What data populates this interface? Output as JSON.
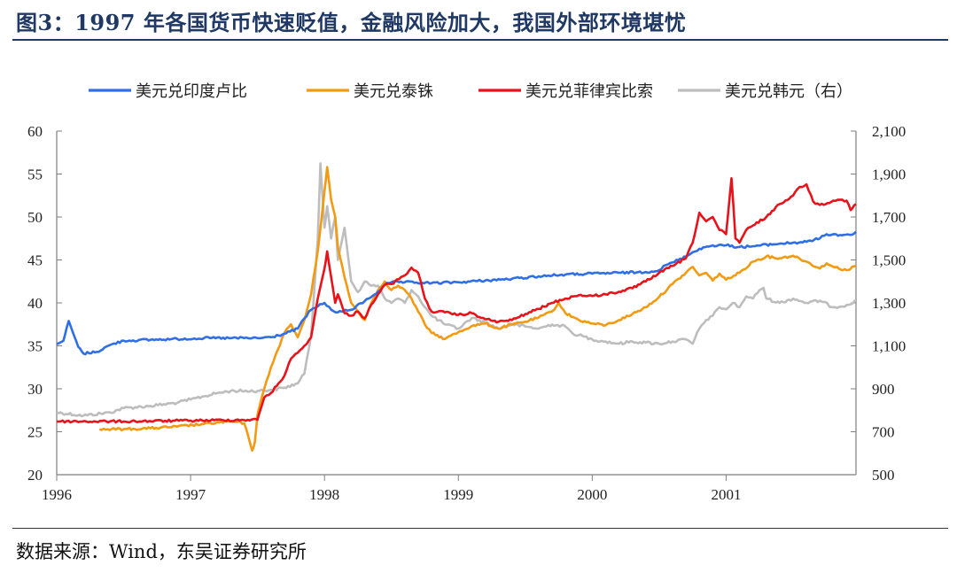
{
  "title": "图3：1997 年各国货币快速贬值，金融风险加大，我国外部环境堪忧",
  "source": "数据来源：Wind，东吴证券研究所",
  "chart_data": {
    "type": "line",
    "x_ticks": [
      "1996",
      "1997",
      "1998",
      "1999",
      "2000",
      "2001"
    ],
    "xlim": [
      1996.0,
      2001.97
    ],
    "y_left": {
      "ylim": [
        20,
        60
      ],
      "ticks": [
        "20",
        "25",
        "30",
        "35",
        "40",
        "45",
        "50",
        "55",
        "60"
      ]
    },
    "y_right": {
      "ylim": [
        500,
        2100
      ],
      "ticks": [
        "500",
        "700",
        "900",
        "1,100",
        "1,300",
        "1,500",
        "1,700",
        "1,900",
        "2,100"
      ]
    },
    "legend_position": "top",
    "grid": false,
    "series": [
      {
        "name": "美元兑印度卢比",
        "color": "#2f6fe6",
        "axis": "left",
        "points": [
          [
            1996.0,
            35.2
          ],
          [
            1996.05,
            35.6
          ],
          [
            1996.09,
            37.9
          ],
          [
            1996.12,
            36.6
          ],
          [
            1996.16,
            34.9
          ],
          [
            1996.2,
            34.1
          ],
          [
            1996.3,
            34.3
          ],
          [
            1996.4,
            35.1
          ],
          [
            1996.5,
            35.6
          ],
          [
            1996.7,
            35.7
          ],
          [
            1996.9,
            35.8
          ],
          [
            1997.1,
            35.9
          ],
          [
            1997.3,
            35.9
          ],
          [
            1997.5,
            35.9
          ],
          [
            1997.6,
            36.0
          ],
          [
            1997.7,
            36.4
          ],
          [
            1997.8,
            37.0
          ],
          [
            1997.85,
            38.2
          ],
          [
            1997.9,
            39.2
          ],
          [
            1997.95,
            39.6
          ],
          [
            1998.0,
            40.0
          ],
          [
            1998.05,
            39.2
          ],
          [
            1998.1,
            38.9
          ],
          [
            1998.2,
            39.2
          ],
          [
            1998.3,
            40.2
          ],
          [
            1998.4,
            41.3
          ],
          [
            1998.45,
            42.1
          ],
          [
            1998.5,
            42.4
          ],
          [
            1998.6,
            42.4
          ],
          [
            1998.8,
            42.3
          ],
          [
            1999.0,
            42.4
          ],
          [
            1999.2,
            42.6
          ],
          [
            1999.4,
            42.8
          ],
          [
            1999.6,
            43.1
          ],
          [
            1999.8,
            43.3
          ],
          [
            2000.0,
            43.4
          ],
          [
            2000.2,
            43.5
          ],
          [
            2000.4,
            43.6
          ],
          [
            2000.5,
            43.8
          ],
          [
            2000.55,
            44.4
          ],
          [
            2000.6,
            44.7
          ],
          [
            2000.7,
            45.4
          ],
          [
            2000.75,
            45.9
          ],
          [
            2000.8,
            46.3
          ],
          [
            2000.9,
            46.7
          ],
          [
            2001.0,
            46.7
          ],
          [
            2001.1,
            46.5
          ],
          [
            2001.2,
            46.6
          ],
          [
            2001.4,
            46.9
          ],
          [
            2001.6,
            47.1
          ],
          [
            2001.7,
            47.5
          ],
          [
            2001.75,
            48.0
          ],
          [
            2001.85,
            47.9
          ],
          [
            2001.95,
            48.0
          ],
          [
            2001.97,
            48.3
          ]
        ]
      },
      {
        "name": "美元兑泰铢",
        "color": "#f39a12",
        "axis": "left",
        "points": [
          [
            1996.32,
            25.3
          ],
          [
            1996.5,
            25.3
          ],
          [
            1996.7,
            25.4
          ],
          [
            1996.9,
            25.6
          ],
          [
            1997.1,
            25.9
          ],
          [
            1997.3,
            26.2
          ],
          [
            1997.4,
            26.0
          ],
          [
            1997.43,
            24.5
          ],
          [
            1997.46,
            22.8
          ],
          [
            1997.48,
            23.8
          ],
          [
            1997.5,
            27.0
          ],
          [
            1997.55,
            30.0
          ],
          [
            1997.6,
            32.5
          ],
          [
            1997.65,
            34.5
          ],
          [
            1997.7,
            36.5
          ],
          [
            1997.75,
            37.5
          ],
          [
            1997.8,
            36.0
          ],
          [
            1997.85,
            38.0
          ],
          [
            1997.9,
            41.0
          ],
          [
            1997.95,
            46.0
          ],
          [
            1998.0,
            53.0
          ],
          [
            1998.02,
            55.8
          ],
          [
            1998.05,
            52.0
          ],
          [
            1998.08,
            50.0
          ],
          [
            1998.1,
            46.5
          ],
          [
            1998.15,
            43.0
          ],
          [
            1998.2,
            40.0
          ],
          [
            1998.25,
            39.0
          ],
          [
            1998.3,
            38.0
          ],
          [
            1998.35,
            40.0
          ],
          [
            1998.4,
            41.5
          ],
          [
            1998.45,
            42.5
          ],
          [
            1998.5,
            41.5
          ],
          [
            1998.55,
            42.0
          ],
          [
            1998.6,
            41.5
          ],
          [
            1998.65,
            40.5
          ],
          [
            1998.7,
            39.0
          ],
          [
            1998.75,
            37.5
          ],
          [
            1998.8,
            36.5
          ],
          [
            1998.9,
            35.8
          ],
          [
            1999.0,
            36.6
          ],
          [
            1999.1,
            37.3
          ],
          [
            1999.2,
            37.6
          ],
          [
            1999.3,
            37.0
          ],
          [
            1999.4,
            37.5
          ],
          [
            1999.5,
            37.8
          ],
          [
            1999.6,
            38.3
          ],
          [
            1999.7,
            39.0
          ],
          [
            1999.75,
            40.0
          ],
          [
            1999.8,
            38.8
          ],
          [
            1999.9,
            38.0
          ],
          [
            2000.0,
            37.6
          ],
          [
            2000.1,
            37.4
          ],
          [
            2000.2,
            38.0
          ],
          [
            2000.3,
            38.7
          ],
          [
            2000.4,
            39.5
          ],
          [
            2000.5,
            40.7
          ],
          [
            2000.6,
            42.2
          ],
          [
            2000.7,
            43.5
          ],
          [
            2000.75,
            44.2
          ],
          [
            2000.8,
            43.2
          ],
          [
            2000.85,
            43.5
          ],
          [
            2000.9,
            42.6
          ],
          [
            2000.95,
            43.4
          ],
          [
            2001.0,
            42.7
          ],
          [
            2001.1,
            43.5
          ],
          [
            2001.2,
            44.8
          ],
          [
            2001.3,
            45.4
          ],
          [
            2001.4,
            45.2
          ],
          [
            2001.5,
            45.5
          ],
          [
            2001.6,
            44.8
          ],
          [
            2001.7,
            44.0
          ],
          [
            2001.75,
            44.6
          ],
          [
            2001.8,
            44.2
          ],
          [
            2001.9,
            43.8
          ],
          [
            2001.97,
            44.3
          ]
        ]
      },
      {
        "name": "美元兑菲律宾比索",
        "color": "#e8121b",
        "axis": "left",
        "points": [
          [
            1996.0,
            26.2
          ],
          [
            1996.5,
            26.2
          ],
          [
            1997.0,
            26.3
          ],
          [
            1997.5,
            26.4
          ],
          [
            1997.52,
            27.5
          ],
          [
            1997.55,
            29.0
          ],
          [
            1997.6,
            29.5
          ],
          [
            1997.7,
            31.5
          ],
          [
            1997.75,
            33.5
          ],
          [
            1997.8,
            34.2
          ],
          [
            1997.85,
            35.0
          ],
          [
            1997.9,
            36.0
          ],
          [
            1997.95,
            40.5
          ],
          [
            1998.0,
            44.0
          ],
          [
            1998.02,
            46.0
          ],
          [
            1998.05,
            43.0
          ],
          [
            1998.08,
            40.0
          ],
          [
            1998.1,
            41.0
          ],
          [
            1998.15,
            38.8
          ],
          [
            1998.2,
            38.5
          ],
          [
            1998.25,
            39.0
          ],
          [
            1998.3,
            38.2
          ],
          [
            1998.35,
            39.8
          ],
          [
            1998.4,
            41.0
          ],
          [
            1998.45,
            42.1
          ],
          [
            1998.5,
            42.2
          ],
          [
            1998.6,
            43.2
          ],
          [
            1998.65,
            44.1
          ],
          [
            1998.7,
            43.5
          ],
          [
            1998.75,
            40.5
          ],
          [
            1998.8,
            39.0
          ],
          [
            1998.9,
            38.9
          ],
          [
            1999.0,
            38.6
          ],
          [
            1999.1,
            38.8
          ],
          [
            1999.2,
            38.1
          ],
          [
            1999.3,
            37.8
          ],
          [
            1999.4,
            38.0
          ],
          [
            1999.5,
            38.7
          ],
          [
            1999.6,
            39.3
          ],
          [
            1999.7,
            40.0
          ],
          [
            1999.8,
            40.5
          ],
          [
            1999.9,
            40.9
          ],
          [
            2000.0,
            40.8
          ],
          [
            2000.1,
            41.0
          ],
          [
            2000.2,
            41.3
          ],
          [
            2000.3,
            41.7
          ],
          [
            2000.4,
            42.5
          ],
          [
            2000.5,
            43.5
          ],
          [
            2000.6,
            44.3
          ],
          [
            2000.7,
            45.2
          ],
          [
            2000.75,
            47.0
          ],
          [
            2000.8,
            50.5
          ],
          [
            2000.85,
            49.5
          ],
          [
            2000.9,
            50.0
          ],
          [
            2000.95,
            48.5
          ],
          [
            2001.0,
            48.0
          ],
          [
            2001.04,
            54.5
          ],
          [
            2001.07,
            47.5
          ],
          [
            2001.1,
            47.0
          ],
          [
            2001.15,
            48.5
          ],
          [
            2001.2,
            49.0
          ],
          [
            2001.3,
            50.0
          ],
          [
            2001.4,
            51.5
          ],
          [
            2001.5,
            52.5
          ],
          [
            2001.55,
            53.5
          ],
          [
            2001.6,
            53.8
          ],
          [
            2001.65,
            51.8
          ],
          [
            2001.7,
            51.4
          ],
          [
            2001.8,
            51.9
          ],
          [
            2001.85,
            52.0
          ],
          [
            2001.9,
            51.9
          ],
          [
            2001.93,
            50.8
          ],
          [
            2001.97,
            51.5
          ]
        ]
      },
      {
        "name": "美元兑韩元（右）",
        "color": "#bdbdbd",
        "axis": "right",
        "points": [
          [
            1996.0,
            790
          ],
          [
            1996.2,
            775
          ],
          [
            1996.4,
            790
          ],
          [
            1996.5,
            810
          ],
          [
            1996.7,
            820
          ],
          [
            1996.9,
            835
          ],
          [
            1997.0,
            850
          ],
          [
            1997.1,
            865
          ],
          [
            1997.2,
            880
          ],
          [
            1997.3,
            890
          ],
          [
            1997.5,
            890
          ],
          [
            1997.6,
            895
          ],
          [
            1997.7,
            905
          ],
          [
            1997.8,
            925
          ],
          [
            1997.85,
            970
          ],
          [
            1997.9,
            1150
          ],
          [
            1997.95,
            1600
          ],
          [
            1997.97,
            1950
          ],
          [
            1998.0,
            1650
          ],
          [
            1998.02,
            1750
          ],
          [
            1998.05,
            1600
          ],
          [
            1998.08,
            1700
          ],
          [
            1998.1,
            1500
          ],
          [
            1998.15,
            1650
          ],
          [
            1998.2,
            1400
          ],
          [
            1998.25,
            1350
          ],
          [
            1998.3,
            1400
          ],
          [
            1998.35,
            1380
          ],
          [
            1998.4,
            1380
          ],
          [
            1998.45,
            1320
          ],
          [
            1998.5,
            1300
          ],
          [
            1998.55,
            1320
          ],
          [
            1998.6,
            1300
          ],
          [
            1998.65,
            1360
          ],
          [
            1998.7,
            1330
          ],
          [
            1998.75,
            1280
          ],
          [
            1998.8,
            1240
          ],
          [
            1998.9,
            1200
          ],
          [
            1999.0,
            1180
          ],
          [
            1999.1,
            1230
          ],
          [
            1999.2,
            1210
          ],
          [
            1999.3,
            1180
          ],
          [
            1999.4,
            1200
          ],
          [
            1999.5,
            1190
          ],
          [
            1999.6,
            1180
          ],
          [
            1999.7,
            1200
          ],
          [
            1999.8,
            1190
          ],
          [
            1999.85,
            1160
          ],
          [
            1999.9,
            1150
          ],
          [
            2000.0,
            1130
          ],
          [
            2000.1,
            1120
          ],
          [
            2000.2,
            1110
          ],
          [
            2000.3,
            1120
          ],
          [
            2000.4,
            1115
          ],
          [
            2000.5,
            1110
          ],
          [
            2000.6,
            1120
          ],
          [
            2000.7,
            1130
          ],
          [
            2000.75,
            1110
          ],
          [
            2000.8,
            1180
          ],
          [
            2000.85,
            1220
          ],
          [
            2000.9,
            1240
          ],
          [
            2000.95,
            1280
          ],
          [
            2001.0,
            1270
          ],
          [
            2001.05,
            1300
          ],
          [
            2001.1,
            1280
          ],
          [
            2001.15,
            1330
          ],
          [
            2001.2,
            1320
          ],
          [
            2001.25,
            1360
          ],
          [
            2001.28,
            1370
          ],
          [
            2001.3,
            1320
          ],
          [
            2001.4,
            1300
          ],
          [
            2001.5,
            1320
          ],
          [
            2001.6,
            1300
          ],
          [
            2001.7,
            1310
          ],
          [
            2001.8,
            1280
          ],
          [
            2001.9,
            1290
          ],
          [
            2001.95,
            1300
          ],
          [
            2001.97,
            1310
          ]
        ]
      }
    ]
  }
}
